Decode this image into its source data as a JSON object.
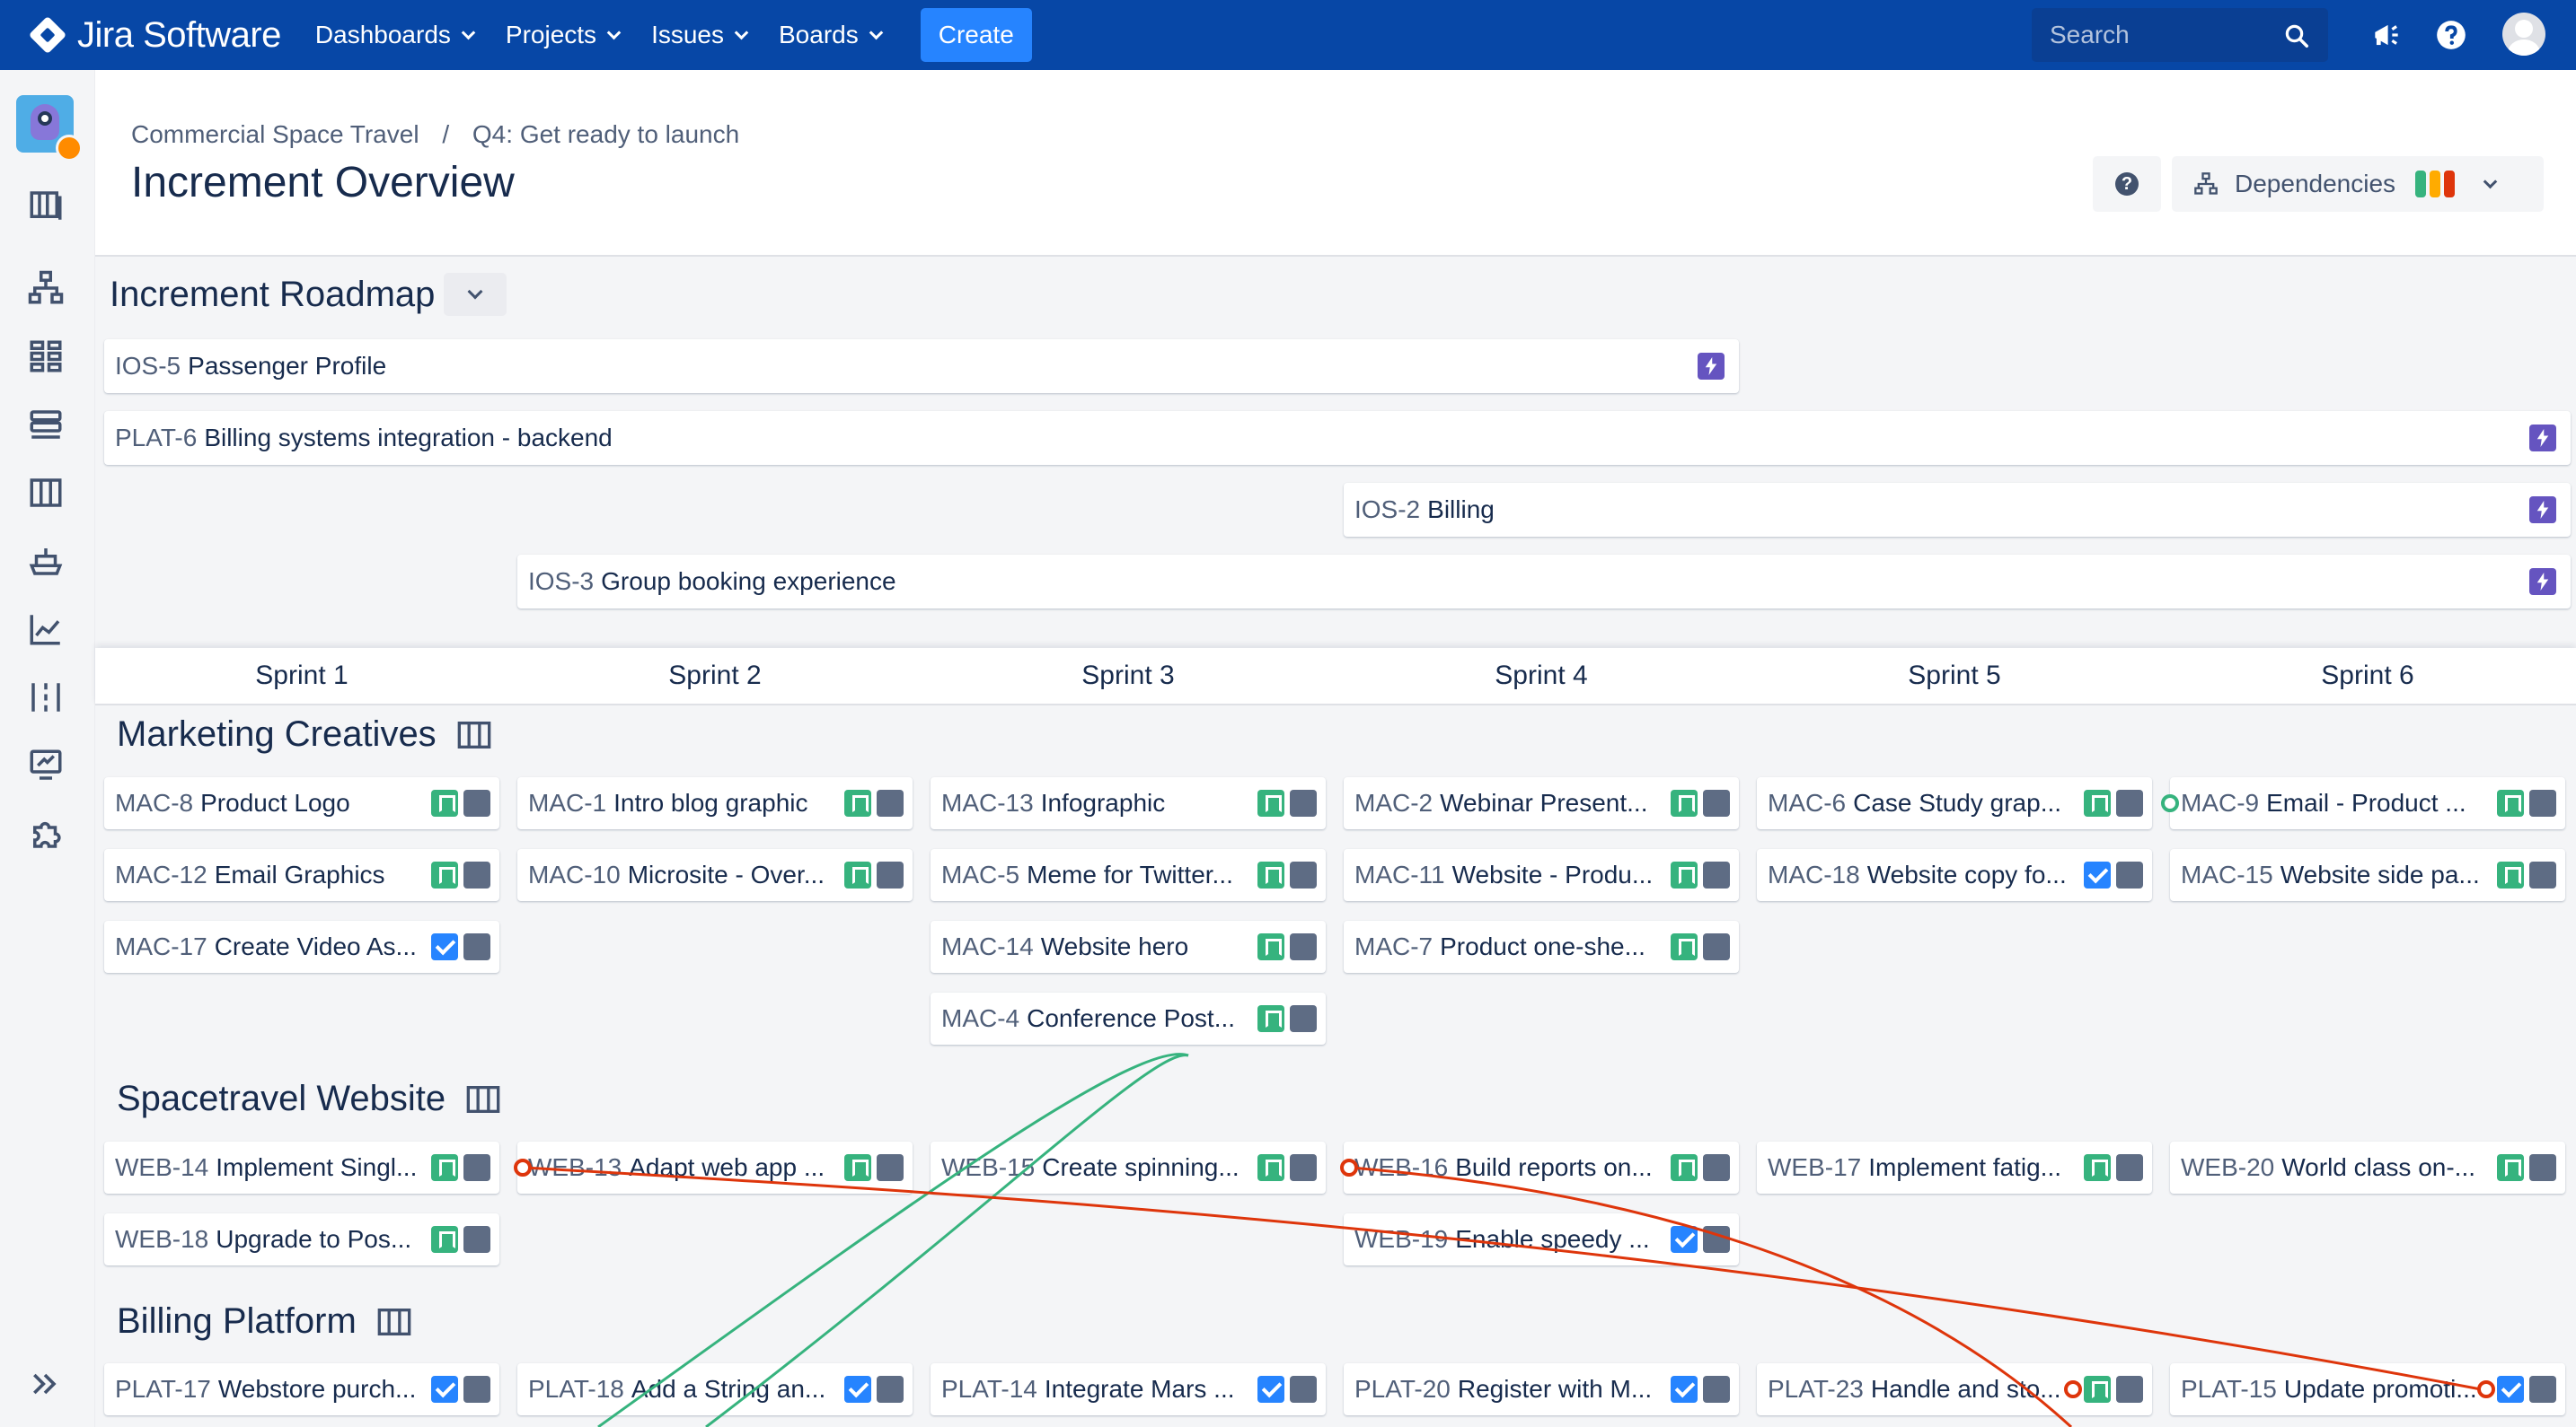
{
  "nav": {
    "brand": "Jira Software",
    "items": [
      {
        "label": "Dashboards"
      },
      {
        "label": "Projects"
      },
      {
        "label": "Issues"
      },
      {
        "label": "Boards"
      }
    ],
    "create_label": "Create",
    "search_placeholder": "Search",
    "icons": [
      "notifications-icon",
      "help-icon",
      "avatar"
    ]
  },
  "sidebar": {
    "icons": [
      "roadmap-icon",
      "hierarchy-icon",
      "apps-grid-icon",
      "backlog-icon",
      "board-icon",
      "ship-icon",
      "reports-icon",
      "timeline-icon",
      "presentation-icon",
      "puzzle-icon",
      "expand-icon"
    ]
  },
  "header": {
    "breadcrumbs": [
      "Commercial Space Travel",
      "/",
      "Q4: Get ready to launch"
    ],
    "title": "Increment Overview",
    "dependencies_label": "Dependencies",
    "dependency_pills": [
      "#36b37e",
      "#ffab00",
      "#de350b"
    ]
  },
  "roadmap": {
    "title": "Increment Roadmap",
    "features": [
      {
        "key": "IOS-5",
        "title": "Passenger Profile"
      },
      {
        "key": "PLAT-6",
        "title": "Billing systems integration - backend"
      },
      {
        "key": "IOS-2",
        "title": "Billing"
      },
      {
        "key": "IOS-3",
        "title": "Group booking experience"
      }
    ]
  },
  "sprints": [
    "Sprint 1",
    "Sprint 2",
    "Sprint 3",
    "Sprint 4",
    "Sprint 5",
    "Sprint 6"
  ],
  "teams": [
    {
      "name": "Marketing Creatives",
      "cards": [
        {
          "sprint": 0,
          "row": 0,
          "key": "MAC-8",
          "title": "Product Logo",
          "type": "story"
        },
        {
          "sprint": 0,
          "row": 1,
          "key": "MAC-12",
          "title": "Email Graphics",
          "type": "story"
        },
        {
          "sprint": 0,
          "row": 2,
          "key": "MAC-17",
          "title": "Create Video As...",
          "type": "task"
        },
        {
          "sprint": 1,
          "row": 0,
          "key": "MAC-1",
          "title": "Intro blog graphic",
          "type": "story"
        },
        {
          "sprint": 1,
          "row": 1,
          "key": "MAC-10",
          "title": "Microsite - Over...",
          "type": "story"
        },
        {
          "sprint": 2,
          "row": 0,
          "key": "MAC-13",
          "title": "Infographic",
          "type": "story"
        },
        {
          "sprint": 2,
          "row": 1,
          "key": "MAC-5",
          "title": "Meme for Twitter...",
          "type": "story"
        },
        {
          "sprint": 2,
          "row": 2,
          "key": "MAC-14",
          "title": "Website hero",
          "type": "story"
        },
        {
          "sprint": 2,
          "row": 3,
          "key": "MAC-4",
          "title": "Conference Post...",
          "type": "story"
        },
        {
          "sprint": 3,
          "row": 0,
          "key": "MAC-2",
          "title": "Webinar Present...",
          "type": "story"
        },
        {
          "sprint": 3,
          "row": 1,
          "key": "MAC-11",
          "title": "Website - Produ...",
          "type": "story"
        },
        {
          "sprint": 3,
          "row": 2,
          "key": "MAC-7",
          "title": "Product one-she...",
          "type": "story"
        },
        {
          "sprint": 4,
          "row": 0,
          "key": "MAC-6",
          "title": "Case Study grap...",
          "type": "story"
        },
        {
          "sprint": 4,
          "row": 1,
          "key": "MAC-18",
          "title": "Website copy fo...",
          "type": "task"
        },
        {
          "sprint": 5,
          "row": 0,
          "key": "MAC-9",
          "title": "Email - Product ...",
          "type": "story",
          "dot": "green"
        },
        {
          "sprint": 5,
          "row": 1,
          "key": "MAC-15",
          "title": "Website side pa...",
          "type": "story"
        }
      ]
    },
    {
      "name": "Spacetravel Website",
      "cards": [
        {
          "sprint": 0,
          "row": 0,
          "key": "WEB-14",
          "title": "Implement Singl...",
          "type": "story"
        },
        {
          "sprint": 0,
          "row": 1,
          "key": "WEB-18",
          "title": "Upgrade to Pos...",
          "type": "story"
        },
        {
          "sprint": 1,
          "row": 0,
          "key": "WEB-13",
          "title": "Adapt web app ...",
          "type": "story",
          "dot": "red"
        },
        {
          "sprint": 2,
          "row": 0,
          "key": "WEB-15",
          "title": "Create spinning...",
          "type": "story"
        },
        {
          "sprint": 3,
          "row": 0,
          "key": "WEB-16",
          "title": "Build reports on...",
          "type": "story",
          "dot": "red"
        },
        {
          "sprint": 3,
          "row": 1,
          "key": "WEB-19",
          "title": "Enable speedy ...",
          "type": "task"
        },
        {
          "sprint": 4,
          "row": 0,
          "key": "WEB-17",
          "title": "Implement fatig...",
          "type": "story"
        },
        {
          "sprint": 5,
          "row": 0,
          "key": "WEB-20",
          "title": "World class on-...",
          "type": "story"
        }
      ]
    },
    {
      "name": "Billing Platform",
      "cards": [
        {
          "sprint": 0,
          "row": 0,
          "key": "PLAT-17",
          "title": "Webstore purch...",
          "type": "task"
        },
        {
          "sprint": 1,
          "row": 0,
          "key": "PLAT-18",
          "title": "Add a String an...",
          "type": "task"
        },
        {
          "sprint": 2,
          "row": 0,
          "key": "PLAT-14",
          "title": "Integrate Mars ...",
          "type": "task"
        },
        {
          "sprint": 3,
          "row": 0,
          "key": "PLAT-20",
          "title": "Register with M...",
          "type": "task"
        },
        {
          "sprint": 4,
          "row": 0,
          "key": "PLAT-23",
          "title": "Handle and sto...",
          "type": "story",
          "dot": "red"
        },
        {
          "sprint": 5,
          "row": 0,
          "key": "PLAT-15",
          "title": "Update promoti...",
          "type": "task",
          "dot": "red"
        }
      ]
    }
  ],
  "colors": {
    "nav_bg": "#0747a6",
    "create_bg": "#2684ff",
    "epic": "#6554c0",
    "story": "#36b37e",
    "task": "#2684ff",
    "status": "#5e6c84",
    "dep_red": "#de350b",
    "dep_green": "#36b37e"
  }
}
